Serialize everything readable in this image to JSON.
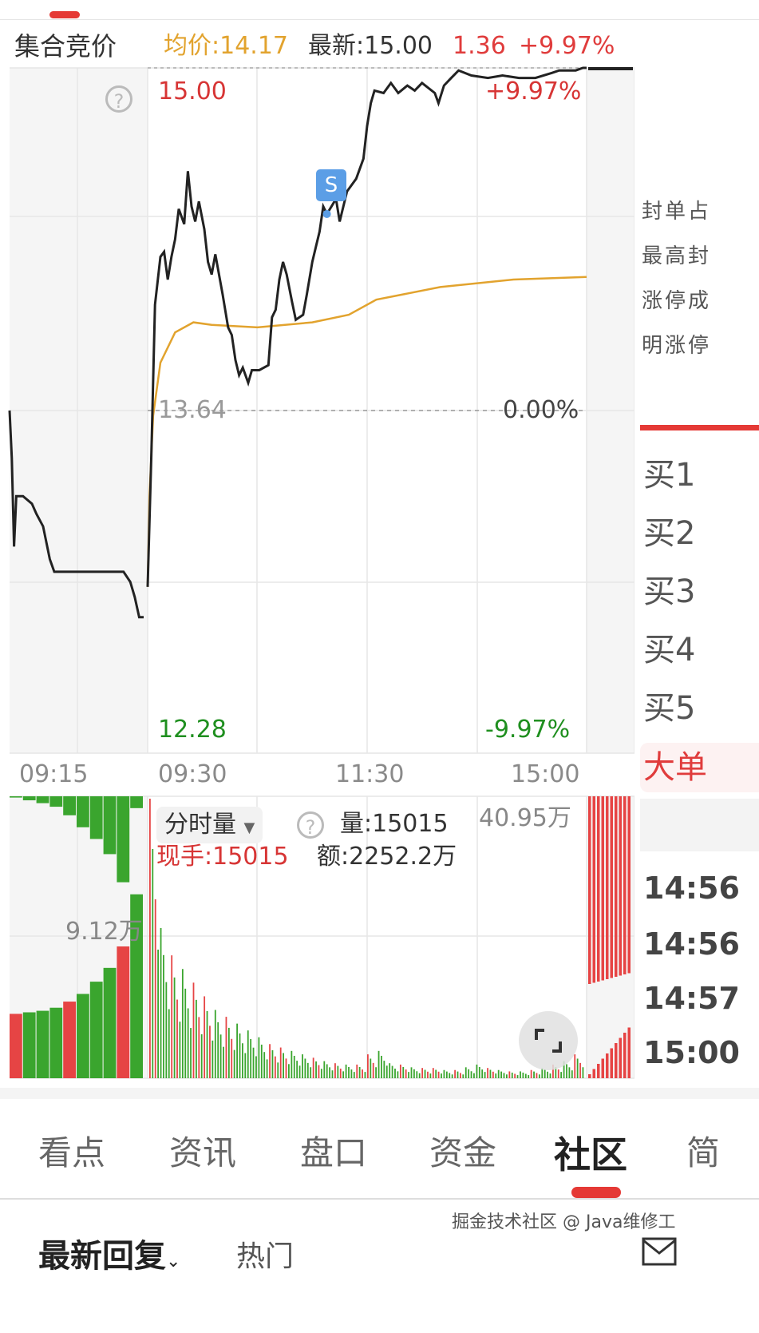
{
  "header": {
    "mode_label": "集合竞价",
    "avg_label": "均价:14.17",
    "latest_label": "最新:15.00",
    "change": "1.36",
    "change_pct": "+9.97%"
  },
  "colors": {
    "up": "#e03c3c",
    "down": "#1f8f1f",
    "avg_line": "#e2a32e",
    "price_line": "#222222",
    "vol_green": "#3aa52e",
    "vol_red": "#e64444"
  },
  "chart_data": {
    "type": "line",
    "price_axis": {
      "top": "15.00",
      "mid": "13.64",
      "bottom": "12.28",
      "top_pct": "+9.97%",
      "mid_pct": "0.00%",
      "bottom_pct": "-9.97%",
      "ylim": [
        12.28,
        15.0
      ],
      "prev_close": 13.64
    },
    "time_ticks": [
      "09:15",
      "09:30",
      "11:30",
      "15:00"
    ],
    "auction_price": [
      [
        "09:15:00",
        13.64
      ],
      [
        "09:15:10",
        13.45
      ],
      [
        "09:15:20",
        13.1
      ],
      [
        "09:15:30",
        13.3
      ],
      [
        "09:16:00",
        13.3
      ],
      [
        "09:16:40",
        13.27
      ],
      [
        "09:17:00",
        13.23
      ],
      [
        "09:17:30",
        13.18
      ],
      [
        "09:18:00",
        13.05
      ],
      [
        "09:18:20",
        13.0
      ],
      [
        "09:23:30",
        13.0
      ],
      [
        "09:24:00",
        12.96
      ],
      [
        "09:24:20",
        12.9
      ],
      [
        "09:24:40",
        12.82
      ],
      [
        "09:25:00",
        12.82
      ]
    ],
    "price": [
      [
        "09:30",
        12.94
      ],
      [
        "09:32",
        13.46
      ],
      [
        "09:34",
        14.06
      ],
      [
        "09:37",
        14.25
      ],
      [
        "09:39",
        14.27
      ],
      [
        "09:41",
        14.16
      ],
      [
        "09:43",
        14.25
      ],
      [
        "09:45",
        14.32
      ],
      [
        "09:47",
        14.44
      ],
      [
        "09:50",
        14.38
      ],
      [
        "09:52",
        14.59
      ],
      [
        "09:54",
        14.45
      ],
      [
        "09:56",
        14.39
      ],
      [
        "09:58",
        14.47
      ],
      [
        "10:01",
        14.36
      ],
      [
        "10:03",
        14.23
      ],
      [
        "10:05",
        14.18
      ],
      [
        "10:07",
        14.26
      ],
      [
        "10:11",
        14.1
      ],
      [
        "10:14",
        13.97
      ],
      [
        "10:16",
        13.94
      ],
      [
        "10:18",
        13.84
      ],
      [
        "10:20",
        13.78
      ],
      [
        "10:22",
        13.81
      ],
      [
        "10:25",
        13.75
      ],
      [
        "10:27",
        13.8
      ],
      [
        "10:31",
        13.8
      ],
      [
        "10:36",
        13.82
      ],
      [
        "10:38",
        14.01
      ],
      [
        "10:40",
        14.04
      ],
      [
        "10:42",
        14.16
      ],
      [
        "10:44",
        14.23
      ],
      [
        "10:46",
        14.18
      ],
      [
        "10:49",
        14.07
      ],
      [
        "10:51",
        14.0
      ],
      [
        "10:55",
        14.02
      ],
      [
        "10:57",
        14.1
      ],
      [
        "11:00",
        14.23
      ],
      [
        "11:02",
        14.29
      ],
      [
        "11:04",
        14.35
      ],
      [
        "11:06",
        14.45
      ],
      [
        "11:08",
        14.42
      ],
      [
        "11:13",
        14.48
      ],
      [
        "11:15",
        14.39
      ],
      [
        "11:17",
        14.45
      ],
      [
        "11:19",
        14.51
      ],
      [
        "11:24",
        14.56
      ],
      [
        "11:28",
        14.64
      ],
      [
        "11:30",
        14.77
      ],
      [
        "13:02",
        14.86
      ],
      [
        "13:04",
        14.91
      ],
      [
        "13:09",
        14.9
      ],
      [
        "13:13",
        14.94
      ],
      [
        "13:17",
        14.9
      ],
      [
        "13:22",
        14.93
      ],
      [
        "13:26",
        14.91
      ],
      [
        "13:30",
        14.94
      ],
      [
        "13:37",
        14.9
      ],
      [
        "13:39",
        14.86
      ],
      [
        "13:42",
        14.93
      ],
      [
        "13:46",
        14.96
      ],
      [
        "13:50",
        14.99
      ],
      [
        "13:57",
        14.97
      ],
      [
        "14:06",
        14.96
      ],
      [
        "14:14",
        14.97
      ],
      [
        "14:23",
        14.96
      ],
      [
        "14:32",
        14.96
      ],
      [
        "14:41",
        14.98
      ],
      [
        "14:45",
        14.99
      ],
      [
        "14:54",
        14.99
      ],
      [
        "14:58",
        15.0
      ],
      [
        "15:00",
        15.0
      ]
    ],
    "avg_price": [
      [
        "09:30",
        12.94
      ],
      [
        "09:31",
        13.3
      ],
      [
        "09:33",
        13.62
      ],
      [
        "09:37",
        13.83
      ],
      [
        "09:45",
        13.95
      ],
      [
        "09:55",
        13.99
      ],
      [
        "10:05",
        13.98
      ],
      [
        "10:30",
        13.97
      ],
      [
        "11:00",
        13.99
      ],
      [
        "11:20",
        14.02
      ],
      [
        "13:05",
        14.08
      ],
      [
        "13:40",
        14.13
      ],
      [
        "14:20",
        14.16
      ],
      [
        "15:00",
        14.17
      ]
    ],
    "marker": {
      "label": "S",
      "time": "11:08",
      "price": 14.42
    },
    "volume": {
      "title": "分时量",
      "volume_label": "量:15015",
      "current_hand_label": "现手:15015",
      "amount_label": "额:2252.2万",
      "max_label": "40.95万",
      "max": 40.95,
      "auction_max_label": "9.12万",
      "auction_max": 9.12,
      "bucket_minutes": 6,
      "main": [
        40.95,
        22,
        18,
        16,
        14,
        12,
        10,
        9,
        8,
        7,
        6,
        5,
        4.5,
        4,
        3.5,
        3,
        2.5,
        2.2,
        2,
        2,
        3.5,
        4,
        2.2,
        2,
        1.6,
        1.5,
        1.5,
        1.2,
        1.2,
        1.6,
        2,
        1.5,
        1.2,
        1,
        1,
        1.2,
        1.5,
        2,
        2.5,
        3.5
      ],
      "main_colors": "rgrgrrgrgggrrggrgrgrrggrgrrgrggrgrgrgrgr",
      "auction_matched": [
        4.2,
        4.3,
        4.4,
        4.6,
        5.0,
        5.5,
        6.3,
        7.2,
        8.6,
        12.0
      ],
      "auction_unmatched": [
        0.4,
        0.8,
        1.0,
        1.2,
        1.8,
        2.5,
        3.0,
        3.6,
        4.8,
        0.6
      ]
    }
  },
  "right_panel": {
    "stats": [
      "封单占",
      "最高封",
      "涨停成",
      "明涨停"
    ],
    "bids": [
      "买1",
      "买2",
      "买3",
      "买4",
      "买5"
    ],
    "big_order_label": "大单",
    "trade_times": [
      "14:56",
      "14:56",
      "14:57",
      "15:00"
    ]
  },
  "tabs": [
    {
      "label": "看点",
      "active": false
    },
    {
      "label": "资讯",
      "active": false
    },
    {
      "label": "盘口",
      "active": false
    },
    {
      "label": "资金",
      "active": false
    },
    {
      "label": "社区",
      "active": true
    },
    {
      "label": "简",
      "active": false
    }
  ],
  "community": {
    "sort_label": "最新回复",
    "hot_label": "热门"
  },
  "watermark": "掘金技术社区 @ Java维修工",
  "icons": {
    "help": "question-circle-icon",
    "expand": "fullscreen-icon",
    "dropdown": "caret-down-icon",
    "mail": "mail-icon"
  }
}
